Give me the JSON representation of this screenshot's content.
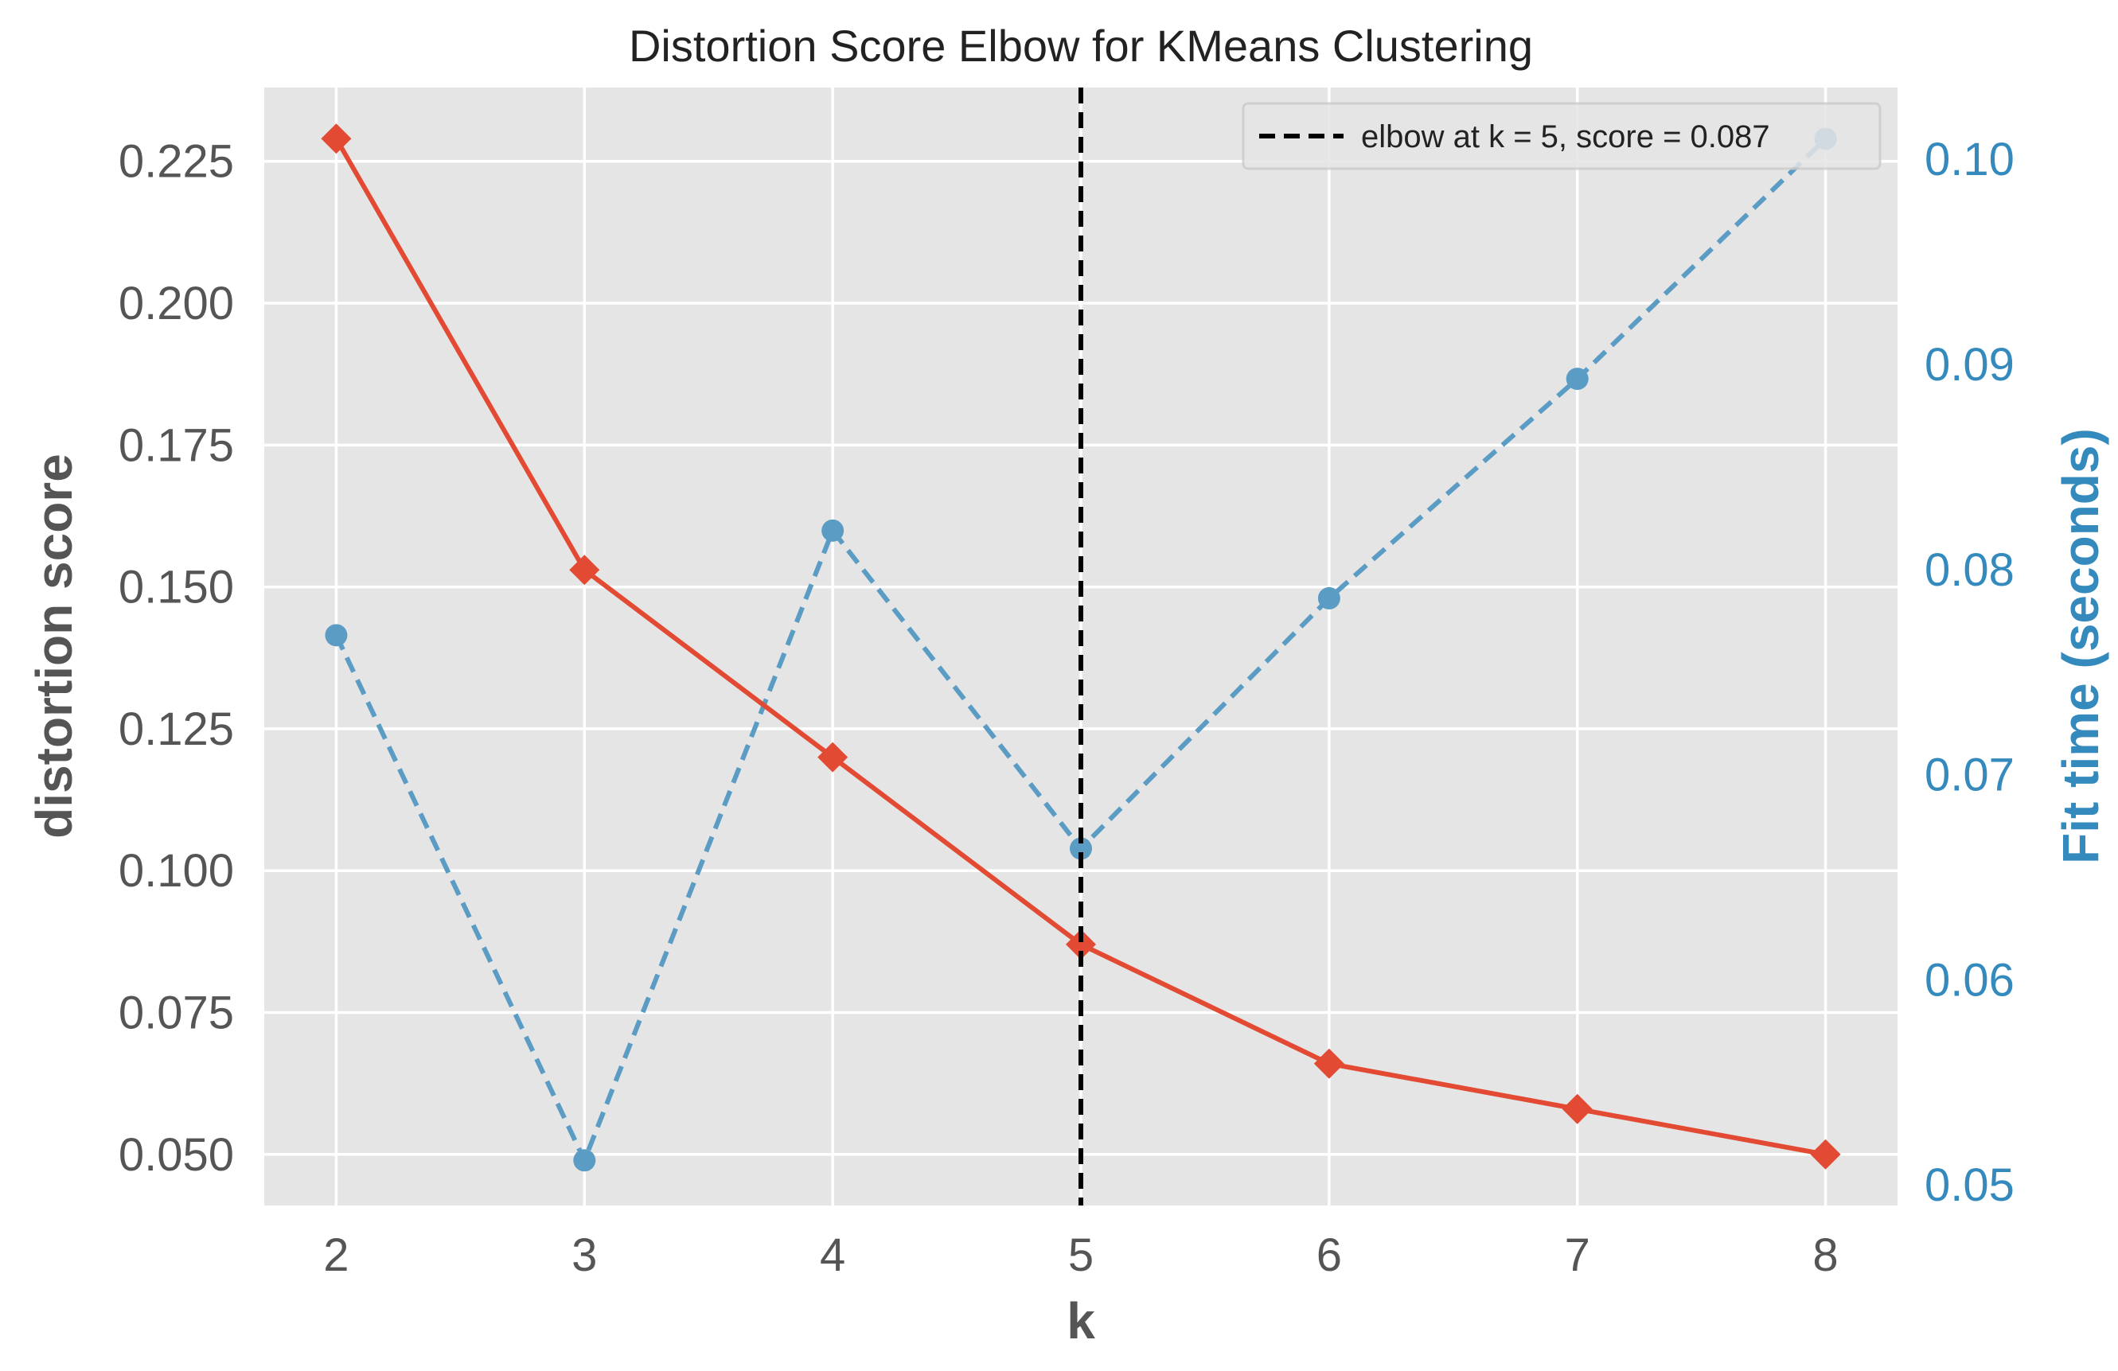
{
  "chart_data": {
    "type": "line",
    "title": "Distortion Score Elbow for KMeans Clustering",
    "xlabel": "k",
    "ylabel": "distortion score",
    "y2label": "Fit time (seconds)",
    "x": [
      2,
      3,
      4,
      5,
      6,
      7,
      8
    ],
    "xlim": [
      1.71,
      8.29
    ],
    "ylim": [
      0.041,
      0.238
    ],
    "y2lim": [
      0.049,
      0.1035
    ],
    "xticks": [
      "2",
      "3",
      "4",
      "5",
      "6",
      "7",
      "8"
    ],
    "yticks": [
      "0.050",
      "0.075",
      "0.100",
      "0.125",
      "0.150",
      "0.175",
      "0.200",
      "0.225"
    ],
    "y2ticks": [
      "0.05",
      "0.06",
      "0.07",
      "0.08",
      "0.09",
      "0.10"
    ],
    "grid": true,
    "series": [
      {
        "axis": "left",
        "values": [
          0.229,
          0.153,
          0.12,
          0.087,
          0.066,
          0.058,
          0.05
        ],
        "color": "#e24a33",
        "marker": "diamond",
        "line": "solid"
      },
      {
        "axis": "right",
        "values": [
          0.0768,
          0.0512,
          0.0819,
          0.0664,
          0.0786,
          0.0893,
          0.101
        ],
        "color": "#5b9cc4",
        "marker": "circle",
        "line": "dashed"
      }
    ],
    "elbow": {
      "k": 5,
      "color": "#000000",
      "legend_label": "elbow at k = 5, score = 0.087"
    },
    "legend": "top-right",
    "colors": {
      "plot_background": "#e5e5e5",
      "grid": "#ffffff",
      "tick_label": "#555555",
      "right_axis": "#348abd"
    }
  }
}
